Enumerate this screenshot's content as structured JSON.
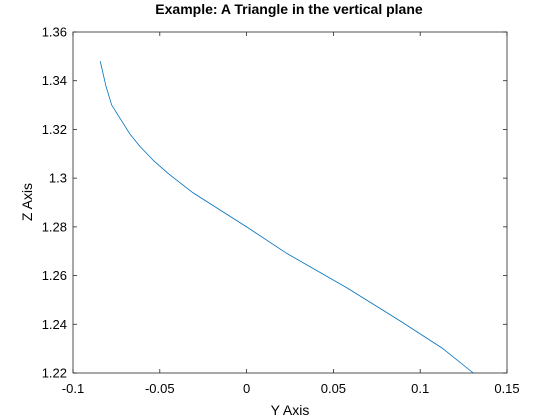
{
  "chart_data": {
    "type": "line",
    "title": "Example: A Triangle in the vertical plane",
    "xlabel": "Y Axis",
    "ylabel": "Z Axis",
    "xlim": [
      -0.1,
      0.15
    ],
    "ylim": [
      1.22,
      1.36
    ],
    "grid": false,
    "x_ticks": [
      "-0.1",
      "-0.05",
      "0",
      "0.05",
      "0.1",
      "0.15"
    ],
    "y_ticks": [
      "1.22",
      "1.24",
      "1.26",
      "1.28",
      "1.3",
      "1.32",
      "1.34",
      "1.36"
    ],
    "series": [
      {
        "color": "#0072bd",
        "x": [
          -0.0843,
          -0.0811,
          -0.0777,
          -0.0724,
          -0.0671,
          -0.0614,
          -0.0533,
          -0.0453,
          -0.0309,
          0.0,
          0.0234,
          0.0577,
          0.0893,
          0.1131,
          0.1306
        ],
        "y": [
          1.348,
          1.338,
          1.33,
          1.324,
          1.318,
          1.313,
          1.307,
          1.302,
          1.294,
          1.28,
          1.269,
          1.255,
          1.241,
          1.23,
          1.22
        ]
      }
    ]
  }
}
